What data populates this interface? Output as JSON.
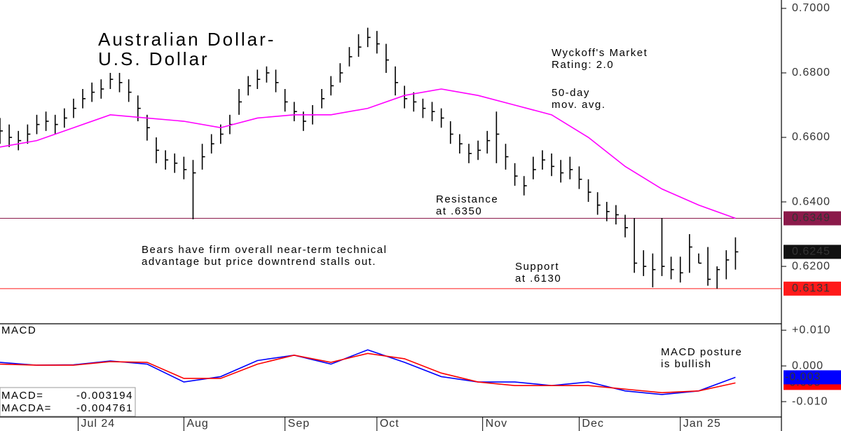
{
  "chart_data": [
    {
      "type": "ohlc",
      "title": [
        "Australian Dollar-",
        "U.S. Dollar"
      ],
      "x": [
        0,
        2,
        4,
        6,
        8,
        10,
        12,
        14,
        16,
        18,
        20,
        22,
        24,
        26,
        28,
        30,
        32,
        34,
        36,
        38,
        40,
        42,
        44,
        46,
        48,
        50,
        52,
        54,
        56,
        58,
        60,
        62,
        64,
        66,
        68,
        70,
        72,
        74,
        76,
        78,
        80,
        82,
        84,
        86,
        88,
        90,
        92,
        94,
        96,
        98,
        100,
        102,
        104,
        106,
        108,
        110,
        112,
        114,
        116,
        118,
        120,
        122,
        124,
        126,
        128,
        130,
        132,
        134,
        136,
        138,
        140,
        142,
        144,
        146,
        148,
        150,
        152,
        154,
        156,
        158,
        160
      ],
      "high": [
        0.666,
        0.664,
        0.662,
        0.664,
        0.667,
        0.668,
        0.667,
        0.669,
        0.672,
        0.675,
        0.677,
        0.678,
        0.68,
        0.68,
        0.678,
        0.673,
        0.667,
        0.66,
        0.656,
        0.655,
        0.654,
        0.653,
        0.658,
        0.661,
        0.664,
        0.667,
        0.675,
        0.679,
        0.681,
        0.682,
        0.681,
        0.675,
        0.671,
        0.668,
        0.67,
        0.675,
        0.679,
        0.683,
        0.688,
        0.692,
        0.694,
        0.693,
        0.689,
        0.682,
        0.676,
        0.674,
        0.672,
        0.671,
        0.669,
        0.665,
        0.661,
        0.658,
        0.659,
        0.662,
        0.668,
        0.658,
        0.652,
        0.648,
        0.654,
        0.656,
        0.655,
        0.653,
        0.654,
        0.651,
        0.647,
        0.643,
        0.64,
        0.639,
        0.636,
        0.635,
        0.625,
        0.624,
        0.635,
        0.623,
        0.623,
        0.63,
        0.624,
        0.626,
        0.62,
        0.625,
        0.629
      ],
      "low": [
        0.658,
        0.657,
        0.656,
        0.658,
        0.661,
        0.662,
        0.661,
        0.663,
        0.666,
        0.669,
        0.671,
        0.672,
        0.675,
        0.674,
        0.671,
        0.665,
        0.659,
        0.652,
        0.65,
        0.649,
        0.647,
        0.6346,
        0.65,
        0.655,
        0.658,
        0.661,
        0.667,
        0.673,
        0.675,
        0.677,
        0.674,
        0.668,
        0.665,
        0.662,
        0.664,
        0.669,
        0.673,
        0.677,
        0.682,
        0.685,
        0.688,
        0.686,
        0.68,
        0.673,
        0.669,
        0.668,
        0.666,
        0.665,
        0.663,
        0.658,
        0.655,
        0.652,
        0.653,
        0.655,
        0.652,
        0.65,
        0.645,
        0.642,
        0.647,
        0.65,
        0.648,
        0.646,
        0.647,
        0.644,
        0.64,
        0.636,
        0.634,
        0.633,
        0.629,
        0.618,
        0.617,
        0.6135,
        0.617,
        0.616,
        0.615,
        0.618,
        0.621,
        0.614,
        0.6131,
        0.616,
        0.619
      ],
      "close": [
        0.662,
        0.66,
        0.659,
        0.661,
        0.664,
        0.665,
        0.664,
        0.666,
        0.669,
        0.672,
        0.674,
        0.675,
        0.678,
        0.677,
        0.674,
        0.669,
        0.663,
        0.656,
        0.653,
        0.652,
        0.65,
        0.649,
        0.654,
        0.658,
        0.661,
        0.664,
        0.671,
        0.676,
        0.678,
        0.68,
        0.677,
        0.671,
        0.668,
        0.665,
        0.667,
        0.672,
        0.676,
        0.68,
        0.685,
        0.688,
        0.691,
        0.689,
        0.684,
        0.677,
        0.672,
        0.671,
        0.669,
        0.668,
        0.666,
        0.661,
        0.658,
        0.655,
        0.656,
        0.659,
        0.661,
        0.654,
        0.648,
        0.645,
        0.65,
        0.653,
        0.651,
        0.649,
        0.65,
        0.647,
        0.643,
        0.639,
        0.637,
        0.636,
        0.632,
        0.621,
        0.62,
        0.619,
        0.62,
        0.619,
        0.618,
        0.626,
        0.621,
        0.616,
        0.619,
        0.622,
        0.6245
      ],
      "color": "#000000",
      "series": [
        {
          "name": [
            "50-day",
            "mov. avg."
          ],
          "color": "#ff00ff",
          "x": [
            0,
            8,
            16,
            24,
            32,
            40,
            48,
            56,
            64,
            72,
            80,
            88,
            96,
            104,
            112,
            120,
            128,
            136,
            144,
            152,
            160
          ],
          "values": [
            0.657,
            0.659,
            0.663,
            0.667,
            0.666,
            0.665,
            0.663,
            0.666,
            0.667,
            0.667,
            0.669,
            0.673,
            0.675,
            0.673,
            0.67,
            0.667,
            0.66,
            0.651,
            0.644,
            0.639,
            0.6349
          ]
        }
      ],
      "xlim": [
        0,
        170
      ],
      "ylim": [
        0.6022,
        0.7026
      ],
      "yticks": [
        {
          "value": 0.7,
          "label": "0.7000"
        },
        {
          "value": 0.68,
          "label": "0.6800"
        },
        {
          "value": 0.66,
          "label": "0.6600"
        },
        {
          "value": 0.64,
          "label": "0.6400"
        },
        {
          "value": 0.62,
          "label": "0.6200"
        }
      ],
      "price_labels": [
        {
          "value": 0.6349,
          "label": "0.6349",
          "color": "#8b1a4a",
          "line": true
        },
        {
          "value": 0.6245,
          "label": "0.6245",
          "color": "#111111",
          "line": false
        },
        {
          "value": 0.6131,
          "label": "0.6131",
          "color": "#ff1a1a",
          "line": true
        }
      ],
      "annotations": [
        {
          "text": [
            "Wyckoff's Market",
            "Rating: 2.0"
          ],
          "color": "#000000"
        },
        {
          "text": [
            "Resistance",
            "at .6350"
          ],
          "color": "#000000"
        },
        {
          "text": [
            "Bears have firm overall near-term technical",
            "advantage but price downtrend stalls out."
          ],
          "color": "#1f2bd1"
        },
        {
          "text": [
            "Support",
            "at .6130"
          ],
          "color": "#ff1a1a"
        }
      ]
    },
    {
      "type": "line",
      "title": "MACD",
      "x": [
        0,
        8,
        16,
        24,
        32,
        40,
        48,
        56,
        64,
        72,
        80,
        88,
        96,
        104,
        112,
        120,
        128,
        136,
        144,
        152,
        160
      ],
      "series": [
        {
          "name": "MACD=",
          "color": "#0000ff",
          "last_label": "-0.003",
          "values": [
            0.001,
            0.0002,
            0.0003,
            0.0014,
            0.0005,
            -0.0045,
            -0.003,
            0.0015,
            0.003,
            0.0005,
            0.0045,
            0.001,
            -0.003,
            -0.0045,
            -0.0045,
            -0.0055,
            -0.0045,
            -0.007,
            -0.008,
            -0.007,
            -0.003194
          ]
        },
        {
          "name": "MACDA=",
          "color": "#ff0000",
          "last_label": "-0.005",
          "values": [
            0.0005,
            0.0002,
            0.0002,
            0.0012,
            0.001,
            -0.0035,
            -0.0035,
            0.0005,
            0.003,
            0.001,
            0.0035,
            0.002,
            -0.002,
            -0.0045,
            -0.0055,
            -0.0055,
            -0.0055,
            -0.0065,
            -0.0075,
            -0.007,
            -0.004761
          ]
        }
      ],
      "xlim": [
        0,
        170
      ],
      "xticks": [
        {
          "value": 17,
          "label": "Jul 24"
        },
        {
          "value": 40,
          "label": "Aug"
        },
        {
          "value": 62,
          "label": "Sep"
        },
        {
          "value": 82,
          "label": "Oct"
        },
        {
          "value": 105,
          "label": "Nov"
        },
        {
          "value": 126,
          "label": "Dec"
        },
        {
          "value": 148,
          "label": "Jan 25"
        }
      ],
      "ylim": [
        -0.0143,
        0.0118
      ],
      "yticks": [
        {
          "value": 0.01,
          "label": "+0.010"
        },
        {
          "value": 0,
          "label": "0.000"
        },
        {
          "value": -0.01,
          "label": "-0.010"
        }
      ],
      "annotations": [
        {
          "text": [
            "MACD posture",
            "is bullish"
          ],
          "color": "#000000"
        }
      ]
    }
  ]
}
